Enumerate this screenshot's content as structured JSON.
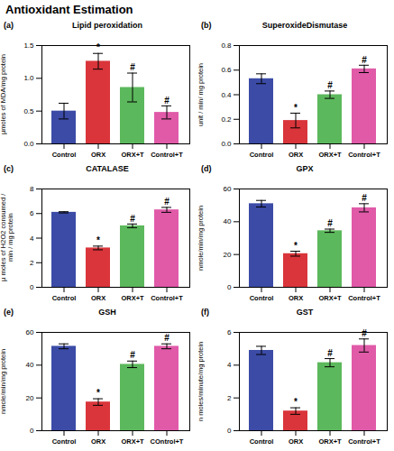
{
  "title": "Antioxidant Estimation",
  "chart_data": [
    {
      "type": "bar",
      "panel": "(a)",
      "title": "Lipid peroxidation",
      "y_label": "µmoles of MDA/mg protein",
      "categories": [
        "Control",
        "ORX",
        "ORX+T",
        "Control+T"
      ],
      "values": [
        0.5,
        1.26,
        0.86,
        0.48
      ],
      "errors": [
        0.12,
        0.12,
        0.22,
        0.1
      ],
      "annotations": [
        null,
        "*",
        "#",
        "#"
      ],
      "colors": [
        "#3b4ba6",
        "#d9353b",
        "#5cb85c",
        "#e05aa8"
      ],
      "ylim": [
        0,
        1.5
      ],
      "yticks": [
        {
          "value": 0,
          "label": "0.0"
        },
        {
          "value": 0.5,
          "label": "0.5"
        },
        {
          "value": 1,
          "label": "1.0"
        },
        {
          "value": 1.5,
          "label": "1.5"
        }
      ]
    },
    {
      "type": "bar",
      "panel": "(b)",
      "title": "SuperoxideDismutase",
      "y_label": "unit / min/ mg protein",
      "categories": [
        "Control",
        "ORX",
        "ORX+T",
        "Control+T"
      ],
      "values": [
        0.53,
        0.19,
        0.4,
        0.61
      ],
      "errors": [
        0.04,
        0.06,
        0.03,
        0.03
      ],
      "annotations": [
        null,
        "*",
        "#",
        "#"
      ],
      "colors": [
        "#3b4ba6",
        "#d9353b",
        "#5cb85c",
        "#e05aa8"
      ],
      "ylim": [
        0,
        0.8
      ],
      "yticks": [
        {
          "value": 0,
          "label": "0.0"
        },
        0.2,
        0.4,
        0.6,
        0.8
      ]
    },
    {
      "type": "bar",
      "panel": "(c)",
      "title": "CATALASE",
      "y_label": "µ moles of H2O2 consumed / min / mg protein",
      "categories": [
        "Control",
        "ORX",
        "ORX+T",
        "Control+T"
      ],
      "values": [
        6.1,
        3.2,
        5.0,
        6.3
      ],
      "errors": [
        0.05,
        0.15,
        0.15,
        0.2
      ],
      "annotations": [
        null,
        "*",
        "#",
        "#"
      ],
      "colors": [
        "#3b4ba6",
        "#d9353b",
        "#5cb85c",
        "#e05aa8"
      ],
      "ylim": [
        0,
        8
      ],
      "yticks": [
        0,
        2,
        4,
        6,
        8
      ]
    },
    {
      "type": "bar",
      "panel": "(d)",
      "title": "GPX",
      "y_label": "nmole/min/mg protein",
      "categories": [
        "Control",
        "ORX",
        "ORX+T",
        "Control+T"
      ],
      "values": [
        51,
        20.5,
        34.5,
        48.5
      ],
      "errors": [
        2,
        1.5,
        1,
        2.5
      ],
      "annotations": [
        null,
        "*",
        "#",
        "#"
      ],
      "colors": [
        "#3b4ba6",
        "#d9353b",
        "#5cb85c",
        "#e05aa8"
      ],
      "ylim": [
        0,
        60
      ],
      "yticks": [
        0,
        20,
        40,
        60
      ]
    },
    {
      "type": "bar",
      "panel": "(e)",
      "title": "GSH",
      "y_label": "nmole/min/mg protein",
      "categories": [
        "Control",
        "ORX",
        "ORX+T",
        "COntrol+T"
      ],
      "values": [
        51.5,
        17.5,
        40.5,
        51.5
      ],
      "errors": [
        1.5,
        2,
        2,
        1.5
      ],
      "annotations": [
        null,
        "*",
        "#",
        "#"
      ],
      "colors": [
        "#3b4ba6",
        "#d9353b",
        "#5cb85c",
        "#e05aa8"
      ],
      "ylim": [
        0,
        60
      ],
      "yticks": [
        0,
        20,
        40,
        60
      ]
    },
    {
      "type": "bar",
      "panel": "(f)",
      "title": "GST",
      "y_label": "n moles/minute/mg protein",
      "categories": [
        "Control",
        "ORX",
        "ORX+T",
        "Control+T"
      ],
      "values": [
        4.9,
        1.2,
        4.15,
        5.2
      ],
      "errors": [
        0.25,
        0.2,
        0.25,
        0.4
      ],
      "annotations": [
        null,
        "*",
        "#",
        "#"
      ],
      "colors": [
        "#3b4ba6",
        "#d9353b",
        "#5cb85c",
        "#e05aa8"
      ],
      "ylim": [
        0,
        6
      ],
      "yticks": [
        0,
        2,
        4,
        6
      ]
    }
  ]
}
